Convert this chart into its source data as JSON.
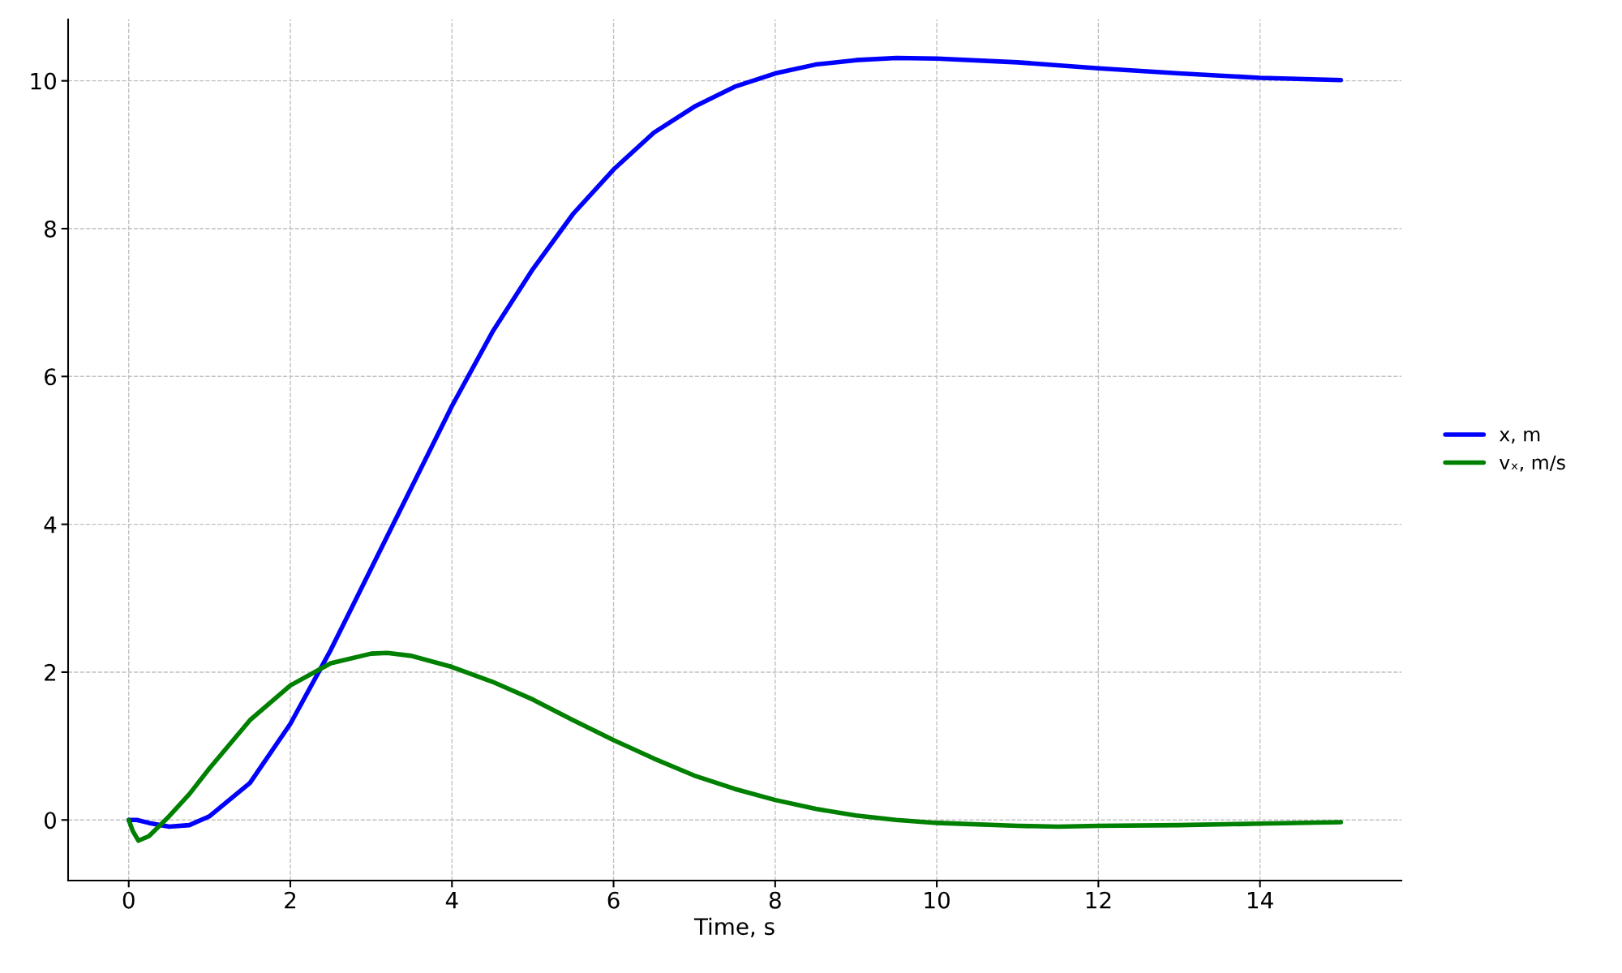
{
  "chart_data": {
    "type": "line",
    "xlabel": "Time, s",
    "xlim": [
      -0.75,
      15.75
    ],
    "xticks": [
      0,
      2,
      4,
      6,
      8,
      10,
      12,
      14
    ],
    "ylim": [
      -0.82,
      10.83
    ],
    "yticks": [
      0,
      2,
      4,
      6,
      8,
      10
    ],
    "grid": true,
    "legend": "right",
    "series": [
      {
        "name": "x, m",
        "color": "#0000ff",
        "x": [
          0,
          0.1,
          0.25,
          0.5,
          0.75,
          1,
          1.5,
          2,
          2.5,
          3,
          3.5,
          4,
          4.5,
          5,
          5.5,
          6,
          6.5,
          7,
          7.5,
          8,
          8.5,
          9,
          9.5,
          10,
          11,
          12,
          13,
          14,
          15
        ],
        "values": [
          0,
          0,
          -0.04,
          -0.09,
          -0.07,
          0.05,
          0.5,
          1.3,
          2.3,
          3.4,
          4.5,
          5.6,
          6.6,
          7.45,
          8.2,
          8.8,
          9.3,
          9.65,
          9.92,
          10.1,
          10.22,
          10.28,
          10.31,
          10.3,
          10.25,
          10.17,
          10.1,
          10.04,
          10.01
        ]
      },
      {
        "name": "vₓ, m/s",
        "color": "#008000",
        "x": [
          0,
          0.05,
          0.12,
          0.25,
          0.5,
          0.75,
          1,
          1.5,
          2,
          2.5,
          3,
          3.2,
          3.5,
          4,
          4.5,
          5,
          5.5,
          6,
          6.5,
          7,
          7.5,
          8,
          8.5,
          9,
          9.5,
          10,
          11,
          11.5,
          12,
          13,
          14,
          15
        ],
        "values": [
          0,
          -0.15,
          -0.28,
          -0.22,
          0.05,
          0.35,
          0.7,
          1.35,
          1.82,
          2.12,
          2.25,
          2.26,
          2.22,
          2.07,
          1.87,
          1.63,
          1.35,
          1.08,
          0.83,
          0.6,
          0.42,
          0.27,
          0.15,
          0.06,
          0.0,
          -0.04,
          -0.08,
          -0.09,
          -0.08,
          -0.07,
          -0.05,
          -0.03
        ]
      }
    ]
  }
}
